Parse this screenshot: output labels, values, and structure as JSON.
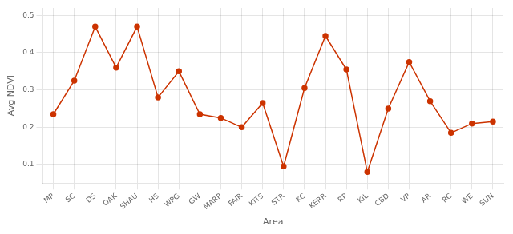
{
  "chart_data": {
    "type": "line",
    "categories": [
      "MP",
      "SC",
      "DS",
      "OAK",
      "SHAU",
      "HS",
      "WPG",
      "GW",
      "MARP",
      "FAIR",
      "KITS",
      "STR",
      "KC",
      "KERR",
      "RP",
      "KIL",
      "CBD",
      "VP",
      "AR",
      "RC",
      "WE",
      "SUN"
    ],
    "values": [
      0.235,
      0.325,
      0.47,
      0.36,
      0.47,
      0.28,
      0.35,
      0.235,
      0.225,
      0.2,
      0.265,
      0.095,
      0.305,
      0.445,
      0.355,
      0.08,
      0.25,
      0.375,
      0.27,
      0.185,
      0.21,
      0.215
    ],
    "color": "#cc3300",
    "marker": "circle",
    "xlabel": "Area",
    "ylabel": "Avg NDVI",
    "ylim": [
      0.05,
      0.52
    ],
    "yticks": [
      0.1,
      0.2,
      0.3,
      0.4,
      0.5
    ],
    "grid": true
  }
}
